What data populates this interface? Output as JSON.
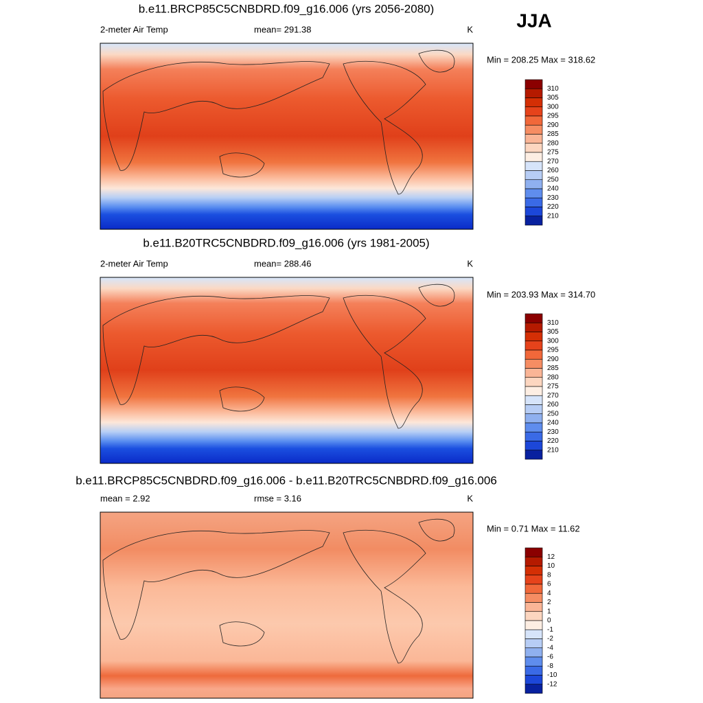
{
  "header": {
    "title": "JJA"
  },
  "panels": [
    {
      "title": "b.e11.BRCP85C5CNBDRD.f09_g16.006 (yrs 2056-2080)",
      "left_label": "2-meter Air Temp",
      "center_label": "mean= 291.38",
      "units": "K",
      "min_max": "Min = 208.25 Max = 318.62",
      "colorbar_labels": [
        "310",
        "305",
        "300",
        "295",
        "290",
        "285",
        "280",
        "275",
        "270",
        "260",
        "250",
        "240",
        "230",
        "220",
        "210"
      ]
    },
    {
      "title": "b.e11.B20TRC5CNBDRD.f09_g16.006 (yrs 1981-2005)",
      "left_label": "2-meter Air Temp",
      "center_label": "mean= 288.46",
      "units": "K",
      "min_max": "Min = 203.93 Max = 314.70",
      "colorbar_labels": [
        "310",
        "305",
        "300",
        "295",
        "290",
        "285",
        "280",
        "275",
        "270",
        "260",
        "250",
        "240",
        "230",
        "220",
        "210"
      ]
    },
    {
      "title": "b.e11.BRCP85C5CNBDRD.f09_g16.006 - b.e11.B20TRC5CNBDRD.f09_g16.006",
      "left_label": "mean =   2.92",
      "center_label": "rmse =   3.16",
      "units": "K",
      "min_max": "Min =   0.71 Max =  11.62",
      "colorbar_labels": [
        "12",
        "10",
        "8",
        "6",
        "4",
        "2",
        "1",
        "0",
        "-1",
        "-2",
        "-4",
        "-6",
        "-8",
        "-10",
        "-12"
      ]
    }
  ]
}
